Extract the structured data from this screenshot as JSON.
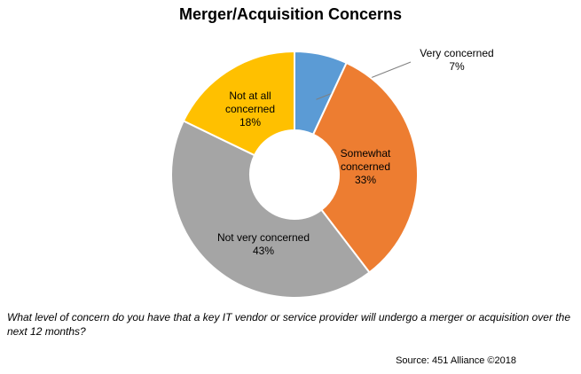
{
  "chart_data": {
    "type": "pie",
    "variant": "donut",
    "title": "Merger/Acquisition Concerns",
    "slices": [
      {
        "label_lines": [
          "Very concerned",
          "7%"
        ],
        "value": 7,
        "color": "#5b9bd5"
      },
      {
        "label_lines": [
          "Somewhat",
          "concerned",
          "33%"
        ],
        "value": 33,
        "color": "#ed7d31"
      },
      {
        "label_lines": [
          "Not very concerned",
          "43%"
        ],
        "value": 43,
        "color": "#a5a5a5"
      },
      {
        "label_lines": [
          "Not at all",
          "concerned",
          "18%"
        ],
        "value": 18,
        "color": "#ffc000"
      }
    ]
  },
  "question": "What level of concern do you have that a key IT vendor or service provider will undergo a merger or acquisition over the next 12 months?",
  "source": "Source: 451 Alliance ©2018"
}
